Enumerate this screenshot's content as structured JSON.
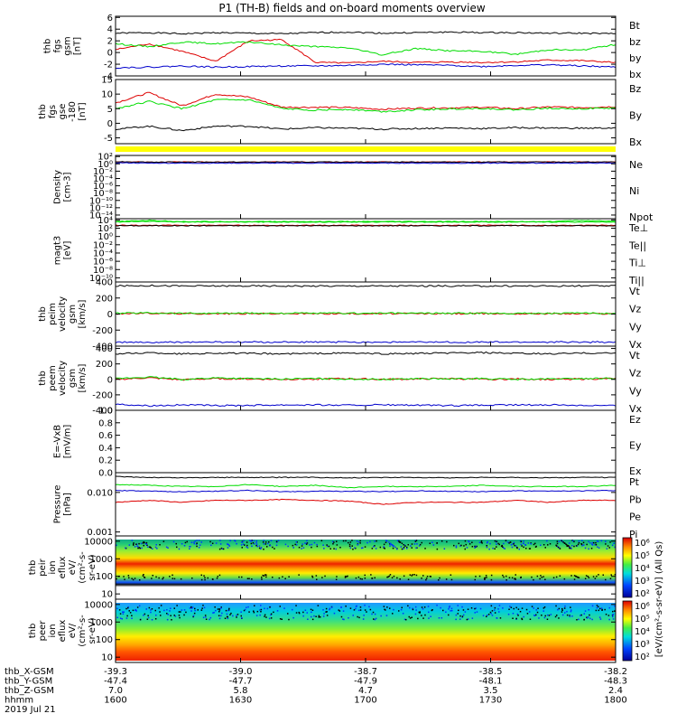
{
  "title": "P1 (TH-B) fields and on-board moments overview",
  "colors": {
    "black": "#000000",
    "red": "#dd0000",
    "green": "#00dd00",
    "blue": "#0000cc"
  },
  "chart_data": [
    {
      "type": "line",
      "ylabel": [
        "thb",
        "fgs",
        "gsm",
        "[nT]"
      ],
      "ylim": [
        -4,
        6.2
      ],
      "yticks": [
        "6",
        "4",
        "2",
        "0",
        "-2",
        "-4"
      ],
      "ytick_values": [
        6,
        4,
        2,
        0,
        -2,
        -4
      ],
      "series": [
        {
          "name": "Bt",
          "color": "black",
          "values": [
            3.3,
            3.4,
            3.2,
            3.4,
            3.3,
            3.2,
            3.4,
            3.5,
            3.3,
            3.4,
            3.5,
            3.4,
            3.4,
            3.3,
            3.3,
            3.2
          ]
        },
        {
          "name": "bz",
          "color": "red",
          "values": [
            0.5,
            1.5,
            0.2,
            -1.5,
            2,
            2.2,
            -1.7,
            -1.8,
            -1.5,
            -1.7,
            -1.6,
            -1.7,
            -1.6,
            -1.3,
            -1.4,
            -1.7
          ]
        },
        {
          "name": "by",
          "color": "green",
          "values": [
            1.5,
            1,
            1.8,
            1.5,
            1.8,
            1.3,
            1,
            0.8,
            -0.4,
            0.7,
            0.3,
            0.2,
            -0.3,
            0.5,
            0.4,
            1.4
          ]
        },
        {
          "name": "bx",
          "color": "blue",
          "values": [
            -2.6,
            -2.5,
            -2.3,
            -2.5,
            -2.4,
            -2.3,
            -2.3,
            -2.2,
            -2,
            -2.1,
            -2.2,
            -2.4,
            -2.2,
            -2.1,
            -2.3,
            -2.5
          ]
        }
      ]
    },
    {
      "type": "line",
      "ylabel": [
        "thb",
        "fgs",
        "gse",
        "-180",
        "[nT]"
      ],
      "ylim": [
        -7,
        15
      ],
      "yticks": [
        "15",
        "10",
        "5",
        "0",
        "-5"
      ],
      "ytick_values": [
        15,
        10,
        5,
        0,
        -5
      ],
      "series": [
        {
          "name": "Bz",
          "color": "red",
          "values": [
            7,
            10.5,
            6,
            10,
            9,
            5.5,
            5.5,
            5.4,
            4.8,
            5.2,
            5.3,
            5.5,
            5,
            5.6,
            5.4,
            5.7
          ]
        },
        {
          "name": "By",
          "color": "green",
          "values": [
            5,
            7.5,
            5,
            8,
            8,
            5,
            4.5,
            4.8,
            4,
            4.6,
            4.9,
            5.1,
            4.6,
            5.2,
            5,
            5.2
          ]
        },
        {
          "name": "Bx",
          "color": "black",
          "values": [
            -2,
            -1,
            -2.5,
            -1,
            -1,
            -2,
            -1.5,
            -1.7,
            -2,
            -1.8,
            -1.6,
            -1.8,
            -1.5,
            -1.6,
            -1.7,
            -1.6
          ]
        }
      ]
    },
    {
      "type": "line",
      "scale": "log",
      "ylabel": [
        "Density",
        "[cm-3]"
      ],
      "yticks": [
        "10²",
        "10⁰",
        "10⁻²",
        "10⁻⁴",
        "10⁻⁶",
        "10⁻⁸",
        "10⁻¹⁰",
        "10⁻¹²",
        "10⁻¹⁴"
      ],
      "ytick_values": [
        2,
        0,
        -2,
        -4,
        -6,
        -8,
        -10,
        -12,
        -14
      ],
      "ylim": [
        -15,
        2.3
      ],
      "series": [
        {
          "name": "Ne",
          "color": "red",
          "values": [
            0.55,
            0.5,
            0.5,
            0.5,
            0.5,
            0.5,
            0.5,
            0.5,
            0.5,
            0.5,
            0.5,
            0.5,
            0.5,
            0.5,
            0.5,
            0.5
          ]
        },
        {
          "name": "Ni",
          "color": "black",
          "values": [
            0.6,
            0.5,
            0.5,
            0.5,
            0.5,
            0.5,
            0.5,
            0.5,
            0.5,
            0.5,
            0.5,
            0.5,
            0.5,
            0.5,
            0.5,
            0.5
          ]
        },
        {
          "name": "Npot",
          "color": "blue",
          "values": [
            0.3,
            0.2,
            0.2,
            0.2,
            0.2,
            0.2,
            0.2,
            0.2,
            0.2,
            0.2,
            0.2,
            0.2,
            0.2,
            0.2,
            0.2,
            0.2
          ]
        }
      ]
    },
    {
      "type": "line",
      "scale": "log",
      "ylabel": [
        "magt3",
        "[eV]"
      ],
      "yticks": [
        "10⁴",
        "10²",
        "10⁰",
        "10⁻²",
        "10⁻⁴",
        "10⁻⁶",
        "10⁻⁸",
        "10⁻¹⁰"
      ],
      "ytick_values": [
        4,
        2,
        0,
        -2,
        -4,
        -6,
        -8,
        -10
      ],
      "ylim": [
        -11,
        4.3
      ],
      "series": [
        {
          "name": "Te⊥",
          "color": "red",
          "values": [
            2.7,
            2.7,
            2.7,
            2.7,
            2.7,
            2.7,
            2.7,
            2.7,
            2.7,
            2.7,
            2.7,
            2.7,
            2.7,
            2.7,
            2.7,
            2.7
          ]
        },
        {
          "name": "Te||",
          "color": "black",
          "values": [
            2.6,
            2.6,
            2.6,
            2.6,
            2.6,
            2.6,
            2.6,
            2.6,
            2.6,
            2.6,
            2.6,
            2.6,
            2.6,
            2.6,
            2.6,
            2.6
          ]
        },
        {
          "name": "Ti⊥",
          "color": "green",
          "values": [
            3.6,
            3.9,
            3.6,
            3.6,
            3.6,
            3.6,
            3.6,
            3.6,
            3.6,
            3.6,
            3.6,
            3.6,
            3.6,
            3.6,
            3.9,
            3.6
          ]
        },
        {
          "name": "Ti||",
          "color": "green",
          "values": [
            3.5,
            3.7,
            3.5,
            3.5,
            3.5,
            3.5,
            3.5,
            3.5,
            3.5,
            3.5,
            3.5,
            3.5,
            3.5,
            3.5,
            3.5,
            3.5
          ]
        }
      ]
    },
    {
      "type": "line",
      "ylabel": [
        "thb",
        "peim",
        "velocity",
        "gsm",
        "[km/s]"
      ],
      "ylim": [
        -400,
        400
      ],
      "yticks": [
        "400",
        "200",
        "0",
        "-200",
        "-400"
      ],
      "ytick_values": [
        400,
        200,
        0,
        -200,
        -400
      ],
      "series": [
        {
          "name": "Vt",
          "color": "black",
          "values": [
            350,
            355,
            350,
            350,
            350,
            350,
            350,
            350,
            350,
            350,
            350,
            350,
            350,
            350,
            350,
            350
          ]
        },
        {
          "name": "Vz",
          "color": "red",
          "values": [
            5,
            10,
            5,
            5,
            5,
            5,
            5,
            5,
            5,
            5,
            5,
            5,
            5,
            5,
            5,
            5
          ]
        },
        {
          "name": "Vy",
          "color": "green",
          "values": [
            10,
            15,
            10,
            10,
            10,
            10,
            10,
            10,
            10,
            10,
            10,
            10,
            10,
            10,
            10,
            10
          ]
        },
        {
          "name": "Vx",
          "color": "blue",
          "values": [
            -350,
            -355,
            -350,
            -350,
            -350,
            -350,
            -350,
            -350,
            -350,
            -350,
            -350,
            -350,
            -350,
            -350,
            -350,
            -350
          ]
        }
      ]
    },
    {
      "type": "line",
      "ylabel": [
        "thb",
        "peem",
        "velocity",
        "gsm",
        "[km/s]"
      ],
      "ylim": [
        -400,
        430
      ],
      "yticks": [
        "400",
        "200",
        "0",
        "-200",
        "-400"
      ],
      "ytick_values": [
        400,
        200,
        0,
        -200,
        -400
      ],
      "series": [
        {
          "name": "Vt",
          "color": "black",
          "values": [
            330,
            345,
            330,
            340,
            335,
            330,
            335,
            340,
            330,
            335,
            340,
            345,
            335,
            330,
            340,
            340
          ]
        },
        {
          "name": "Vz",
          "color": "red",
          "values": [
            0,
            20,
            -5,
            10,
            5,
            0,
            5,
            10,
            0,
            5,
            10,
            0,
            5,
            0,
            5,
            10
          ]
        },
        {
          "name": "Vy",
          "color": "green",
          "values": [
            10,
            30,
            0,
            20,
            10,
            5,
            10,
            5,
            0,
            10,
            5,
            10,
            0,
            5,
            10,
            15
          ]
        },
        {
          "name": "Vx",
          "color": "blue",
          "values": [
            -320,
            -340,
            -330,
            -340,
            -335,
            -330,
            -330,
            -335,
            -330,
            -335,
            -340,
            -335,
            -330,
            -330,
            -335,
            -340
          ]
        }
      ]
    },
    {
      "type": "line",
      "ylabel": [
        "E=-VxB",
        "[mV/m]"
      ],
      "ylim": [
        0,
        1
      ],
      "yticks": [
        "1.0",
        "0.8",
        "0.6",
        "0.4",
        "0.2",
        "0.0"
      ],
      "ytick_values": [
        1,
        0.8,
        0.6,
        0.4,
        0.2,
        0
      ],
      "series": [
        {
          "name": "Ez",
          "color": "red",
          "values": []
        },
        {
          "name": "Ey",
          "color": "green",
          "values": []
        },
        {
          "name": "Ex",
          "color": "blue",
          "values": []
        }
      ]
    },
    {
      "type": "line",
      "scale": "log",
      "ylabel": [
        "Pressure",
        "[nPa]"
      ],
      "yticks": [
        "0.010",
        "0.001"
      ],
      "ytick_values": [
        -2,
        -3
      ],
      "ylim": [
        -3.1,
        -1.5
      ],
      "series": [
        {
          "name": "Pt",
          "color": "black",
          "values": [
            -1.6,
            -1.62,
            -1.63,
            -1.62,
            -1.62,
            -1.62,
            -1.62,
            -1.63,
            -1.62,
            -1.62,
            -1.63,
            -1.62,
            -1.62,
            -1.63,
            -1.62,
            -1.62
          ]
        },
        {
          "name": "Pb",
          "color": "red",
          "values": [
            -2.25,
            -2.2,
            -2.25,
            -2.2,
            -2.2,
            -2.18,
            -2.2,
            -2.22,
            -2.3,
            -2.25,
            -2.25,
            -2.25,
            -2.2,
            -2.25,
            -2.2,
            -2.2
          ]
        },
        {
          "name": "Pe",
          "color": "green",
          "values": [
            -1.8,
            -1.82,
            -1.85,
            -1.85,
            -1.8,
            -1.85,
            -1.82,
            -1.88,
            -1.85,
            -1.85,
            -1.85,
            -1.82,
            -1.85,
            -1.85,
            -1.85,
            -1.82
          ]
        },
        {
          "name": "Pi",
          "color": "blue",
          "values": [
            -1.95,
            -1.97,
            -1.98,
            -1.97,
            -1.95,
            -1.98,
            -1.97,
            -1.97,
            -1.98,
            -1.96,
            -1.97,
            -1.98,
            -1.96,
            -1.97,
            -1.96,
            -1.95
          ]
        }
      ]
    },
    {
      "type": "heatmap",
      "ylabel": [
        "thb",
        "peir",
        "ion",
        "eflux",
        "eV/",
        "(cm²-s-",
        "sr-eV)"
      ],
      "yticks": [
        "10000",
        "1000",
        "100",
        "10"
      ],
      "ytick_values": [
        4,
        3,
        2,
        1
      ],
      "ylim": [
        0.7,
        4.3
      ],
      "colorbar": {
        "label": "[eV/(cm²-s-sr-eV)] (All Qs)",
        "ticks": [
          "10⁶",
          "10⁵",
          "10⁴",
          "10³",
          "10²"
        ],
        "range": [
          2,
          6
        ]
      }
    },
    {
      "type": "heatmap",
      "ylabel": [
        "thb",
        "peer",
        "ion",
        "eflux",
        "eV/",
        "(cm²-s-",
        "sr-eV)"
      ],
      "yticks": [
        "10000",
        "1000",
        "100",
        "10"
      ],
      "ytick_values": [
        4,
        3,
        2,
        1
      ],
      "ylim": [
        0.7,
        4.3
      ],
      "colorbar": {
        "label": "[eV/(cm²-s-sr-eV)] (All Qs)",
        "ticks": [
          "10⁶",
          "10⁵",
          "10⁴",
          "10³",
          "10²"
        ],
        "range": [
          2,
          6
        ]
      }
    }
  ],
  "xaxis": {
    "row_labels": [
      "thb_X-GSM",
      "thb_Y-GSM",
      "thb_Z-GSM",
      "hhmm",
      "2019 Jul 21"
    ],
    "columns": [
      [
        "-39.3",
        "-47.4",
        "7.0",
        "1600"
      ],
      [
        "-39.0",
        "-47.7",
        "5.8",
        "1630"
      ],
      [
        "-38.7",
        "-47.9",
        "4.7",
        "1700"
      ],
      [
        "-38.5",
        "-48.1",
        "3.5",
        "1730"
      ],
      [
        "-38.2",
        "-48.3",
        "2.4",
        "1800"
      ]
    ]
  }
}
